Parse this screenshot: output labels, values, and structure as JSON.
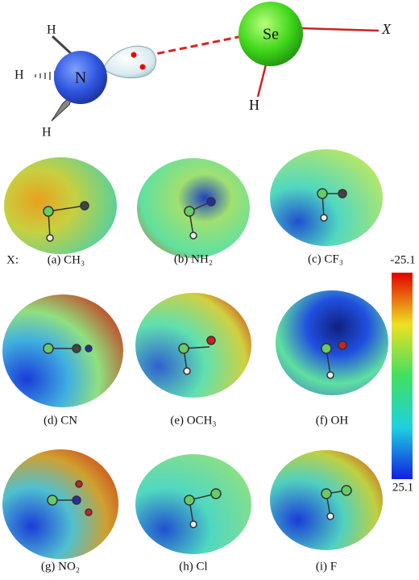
{
  "scheme": {
    "atoms": {
      "h_top": "H",
      "h_left": "H",
      "h_bottom": "H",
      "n": "N",
      "se": "Se",
      "x": "X",
      "h_se": "H"
    }
  },
  "x_label": "X:",
  "panels": [
    "(a) CH₃",
    "(b) NH₂",
    "(c) CF₃",
    "(d) CN",
    "(e) OCH₃",
    "(f) OH",
    "(g) NO₂",
    "(h) Cl",
    "(i) F"
  ],
  "colorbar": {
    "top": "-25.1",
    "bottom": "25.1"
  }
}
